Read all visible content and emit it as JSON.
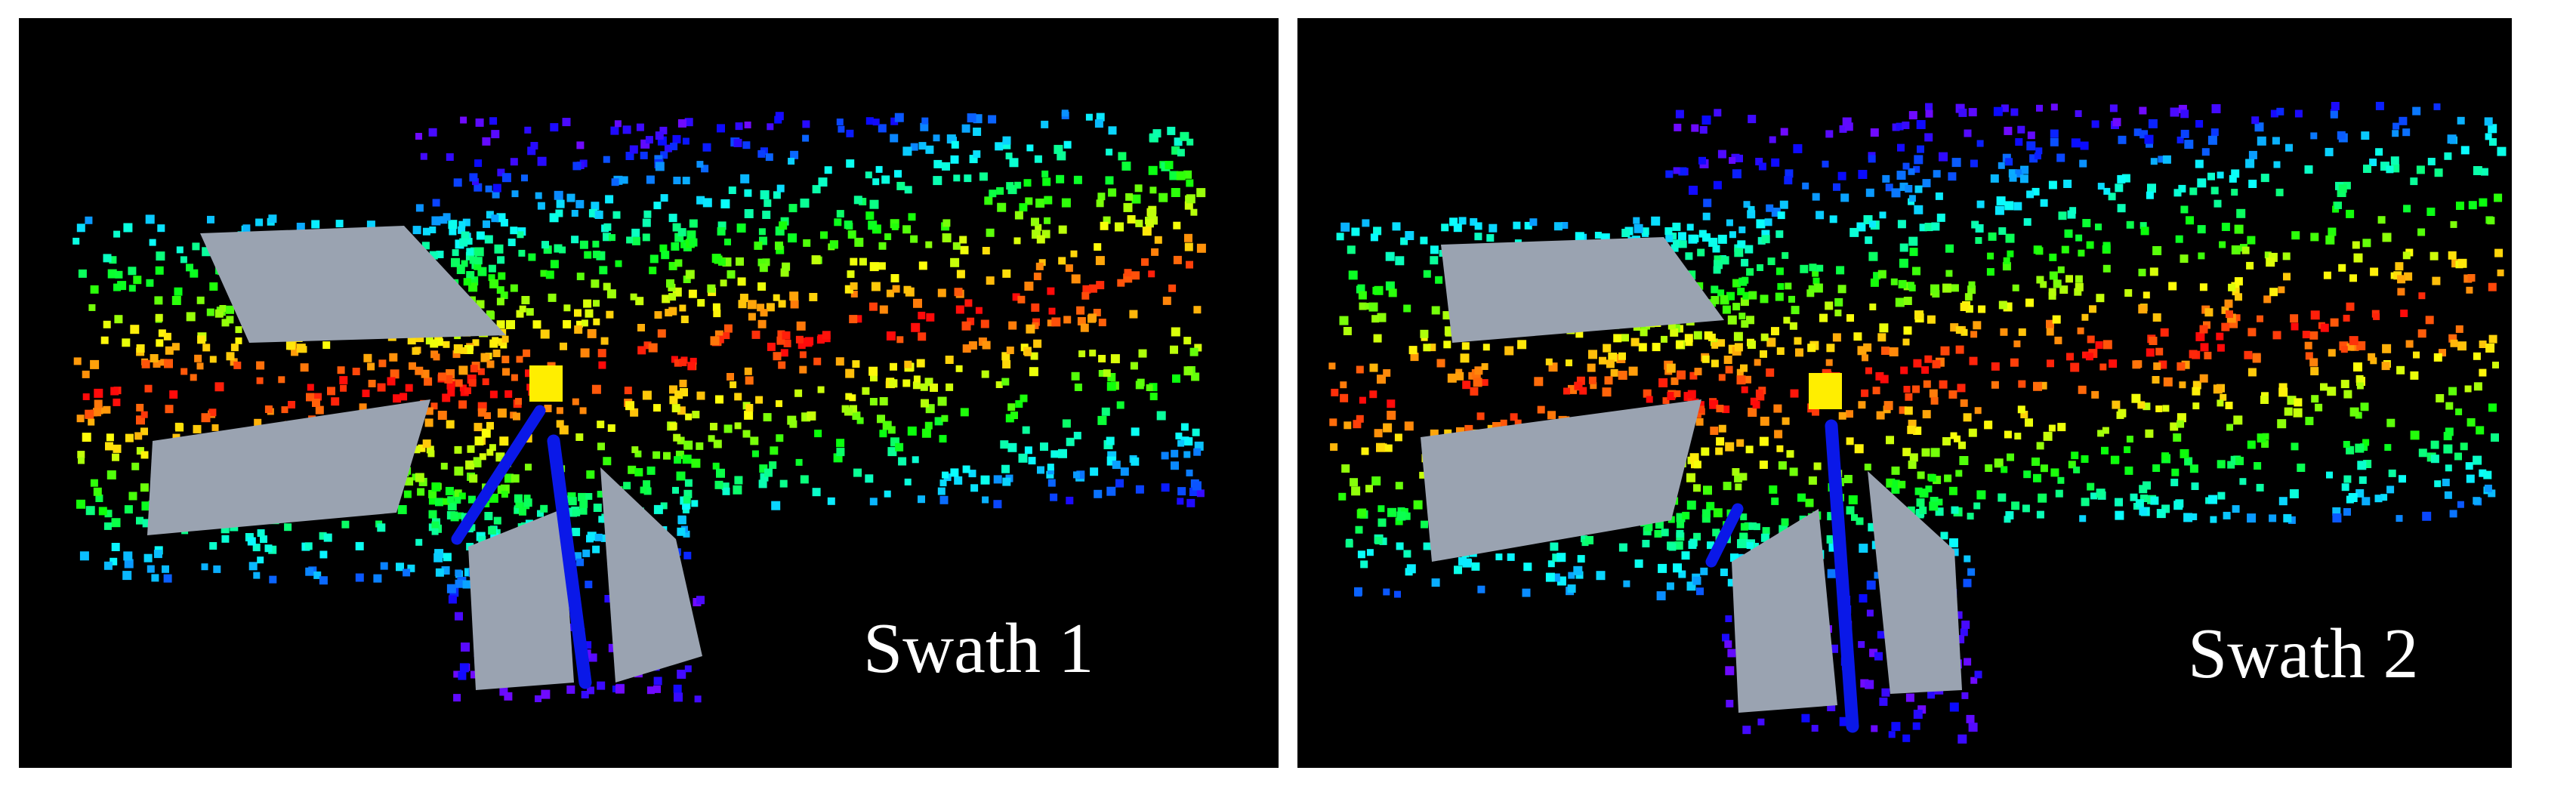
{
  "panels": [
    {
      "caption": "Swath 1"
    },
    {
      "caption": "Swath 2"
    }
  ],
  "colors": {
    "background": "#000000",
    "frame": "#ffffff",
    "plane": "#9aa3b1",
    "marker": "#ffee00",
    "beam": "#0a18e8"
  }
}
